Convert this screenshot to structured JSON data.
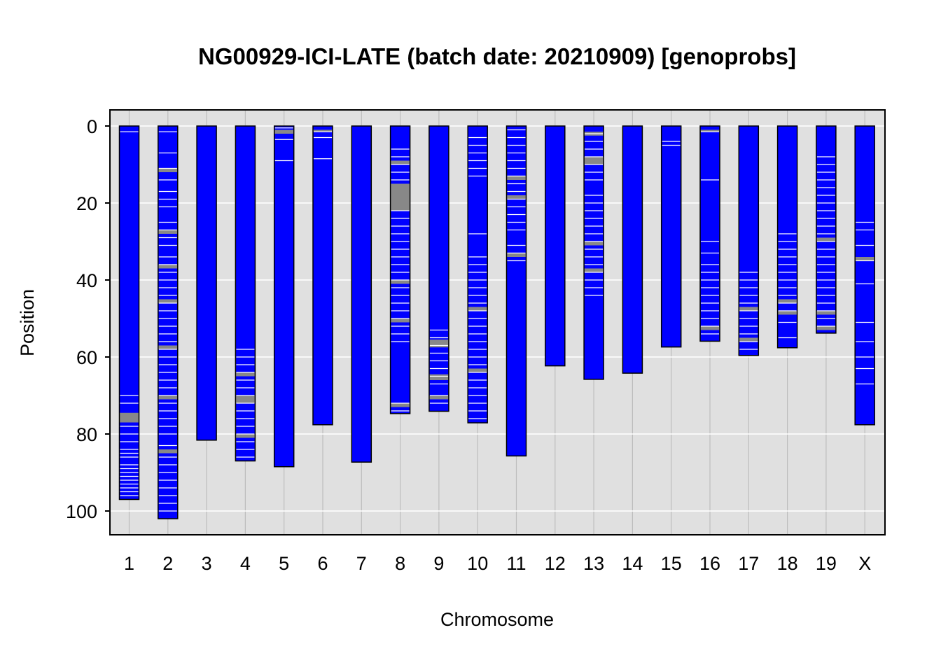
{
  "chart_data": {
    "type": "bar",
    "title": "NG00929-ICI-LATE (batch date: 20210909) [genoprobs]",
    "xlabel": "Chromosome",
    "ylabel": "Position",
    "ylim": [
      0,
      100
    ],
    "y_reversed": true,
    "y_ticks": [
      0,
      20,
      40,
      60,
      80,
      100
    ],
    "grid": true,
    "panel_background": "#e0e0e0",
    "grid_color": "#ffffff",
    "bar_fill": "#0000ff",
    "bar_outline": "#000000",
    "mark_colors": [
      "#ffffff",
      "#888888"
    ],
    "categories": [
      "1",
      "2",
      "3",
      "4",
      "5",
      "6",
      "7",
      "8",
      "9",
      "10",
      "11",
      "12",
      "13",
      "14",
      "15",
      "16",
      "17",
      "18",
      "19",
      "X"
    ],
    "values": [
      97.0,
      102.0,
      81.6,
      87.0,
      88.5,
      77.6,
      87.3,
      74.7,
      74.1,
      77.1,
      85.7,
      62.3,
      65.8,
      64.2,
      57.4,
      55.9,
      59.6,
      57.6,
      53.8,
      77.6
    ],
    "marks": [
      {
        "chromosome": "1",
        "white": [
          1.5,
          70,
          72,
          78,
          80,
          82,
          84,
          85,
          86,
          88,
          89,
          90,
          91,
          92,
          93,
          94,
          95,
          96
        ],
        "gray": [
          [
            74.5,
            76.5
          ],
          [
            76,
            77
          ]
        ]
      },
      {
        "chromosome": "2",
        "white": [
          1.5,
          7,
          11,
          14,
          17,
          19,
          21,
          25,
          27,
          29,
          31,
          34,
          36,
          38,
          40,
          42,
          44,
          46,
          48,
          50,
          52,
          54,
          56,
          58,
          60,
          62,
          64,
          66,
          68,
          70,
          72,
          74,
          76,
          78,
          80,
          83,
          86,
          88,
          90,
          92,
          94,
          96,
          98,
          100
        ],
        "gray": [
          [
            11,
            12
          ],
          [
            27,
            28
          ],
          [
            36,
            37
          ],
          [
            45,
            46
          ],
          [
            57,
            58
          ],
          [
            70,
            71
          ],
          [
            84,
            85
          ]
        ]
      },
      {
        "chromosome": "3",
        "white": [],
        "gray": []
      },
      {
        "chromosome": "4",
        "white": [
          58,
          60,
          62,
          64,
          66,
          68,
          70,
          72,
          74,
          76,
          78,
          80,
          82,
          84,
          86
        ],
        "gray": [
          [
            64,
            65
          ],
          [
            70,
            72
          ],
          [
            80,
            81
          ]
        ]
      },
      {
        "chromosome": "5",
        "white": [
          0.5,
          3.5,
          9
        ],
        "gray": [
          [
            1,
            2
          ]
        ]
      },
      {
        "chromosome": "6",
        "white": [
          1.5,
          3,
          8.5
        ],
        "gray": [
          [
            1,
            1.5
          ]
        ]
      },
      {
        "chromosome": "7",
        "white": [],
        "gray": []
      },
      {
        "chromosome": "8",
        "white": [
          6,
          8,
          10,
          12,
          14,
          22,
          24,
          26,
          28,
          30,
          32,
          34,
          36,
          38,
          40,
          42,
          44,
          46,
          48,
          50,
          52,
          54,
          56,
          72,
          74
        ],
        "gray": [
          [
            15,
            22
          ],
          [
            9,
            10
          ],
          [
            40,
            41
          ],
          [
            50,
            51
          ],
          [
            72,
            73
          ]
        ]
      },
      {
        "chromosome": "9",
        "white": [
          53,
          55,
          57,
          59,
          61,
          63,
          65,
          67,
          70,
          72
        ],
        "gray": [
          [
            55.5,
            57.5
          ],
          [
            64.5,
            66
          ],
          [
            70,
            71
          ]
        ]
      },
      {
        "chromosome": "10",
        "white": [
          3,
          5,
          7,
          9,
          11,
          13,
          28,
          34,
          36,
          38,
          40,
          42,
          44,
          46,
          48,
          50,
          52,
          54,
          56,
          58,
          60,
          62,
          64,
          66,
          68,
          70,
          72,
          74,
          76
        ],
        "gray": [
          [
            47,
            48
          ],
          [
            63,
            64
          ]
        ]
      },
      {
        "chromosome": "11",
        "white": [
          1,
          3,
          5,
          7,
          9,
          11,
          13,
          15,
          17,
          19,
          21,
          23,
          25,
          27,
          31,
          33,
          35
        ],
        "gray": [
          [
            13,
            14
          ],
          [
            18,
            19
          ],
          [
            33,
            34
          ]
        ]
      },
      {
        "chromosome": "12",
        "white": [],
        "gray": []
      },
      {
        "chromosome": "13",
        "white": [
          2,
          4,
          6,
          8,
          10,
          12,
          14,
          18,
          20,
          22,
          24,
          26,
          28,
          30,
          32,
          34,
          36,
          38,
          40,
          42,
          44
        ],
        "gray": [
          [
            1.5,
            2.5
          ],
          [
            8,
            10
          ],
          [
            30,
            31
          ],
          [
            37,
            38
          ]
        ]
      },
      {
        "chromosome": "14",
        "white": [],
        "gray": []
      },
      {
        "chromosome": "15",
        "white": [
          4,
          5
        ],
        "gray": []
      },
      {
        "chromosome": "16",
        "white": [
          1.5,
          14,
          30,
          33,
          36,
          38,
          40,
          42,
          44,
          46,
          48,
          50,
          52,
          54
        ],
        "gray": [
          [
            1,
            1.5
          ],
          [
            52,
            53
          ]
        ]
      },
      {
        "chromosome": "17",
        "white": [
          38,
          40,
          42,
          44,
          46,
          48,
          50,
          52,
          54,
          56,
          58
        ],
        "gray": [
          [
            47,
            48
          ],
          [
            55,
            56
          ]
        ]
      },
      {
        "chromosome": "18",
        "white": [
          28,
          30,
          32,
          34,
          36,
          38,
          40,
          42,
          44,
          46,
          48,
          51,
          55
        ],
        "gray": [
          [
            45,
            46
          ],
          [
            48,
            49
          ]
        ]
      },
      {
        "chromosome": "19",
        "white": [
          8,
          10,
          12,
          14,
          16,
          18,
          20,
          22,
          24,
          26,
          28,
          30,
          32,
          34,
          36,
          38,
          40,
          42,
          44,
          46,
          48,
          50,
          52
        ],
        "gray": [
          [
            29,
            30
          ],
          [
            48,
            49
          ],
          [
            52,
            53
          ]
        ]
      },
      {
        "chromosome": "X",
        "white": [
          25,
          27,
          31,
          35,
          41,
          51,
          56,
          60,
          63,
          67
        ],
        "gray": [
          [
            34,
            35
          ]
        ]
      }
    ]
  }
}
